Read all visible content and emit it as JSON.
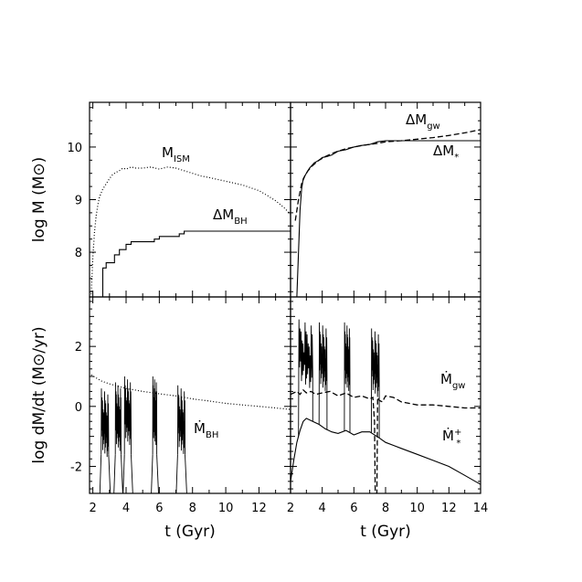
{
  "chart_data": [
    {
      "type": "line",
      "panel": "top-left",
      "ylabel": "log M (M⊙)",
      "xlim": [
        1.8,
        13.9
      ],
      "ylim": [
        7.15,
        10.85
      ],
      "yticks": [
        8,
        9,
        10
      ],
      "xticks": [
        2,
        4,
        6,
        8,
        10,
        12
      ],
      "series": [
        {
          "name": "MISM",
          "label_main": "M",
          "label_sub": "ISM",
          "style": "dotted",
          "x": [
            1.9,
            2.0,
            2.1,
            2.2,
            2.3,
            2.4,
            2.6,
            2.8,
            3.0,
            3.2,
            3.4,
            3.6,
            3.8,
            4.0,
            4.3,
            4.6,
            5.0,
            5.5,
            6.0,
            6.5,
            7.0,
            7.5,
            8.0,
            8.5,
            9.0,
            10.0,
            11.0,
            12.0,
            12.5,
            13.0,
            13.5,
            13.9
          ],
          "y": [
            7.2,
            7.9,
            8.4,
            8.7,
            8.9,
            9.05,
            9.2,
            9.3,
            9.4,
            9.48,
            9.52,
            9.55,
            9.6,
            9.58,
            9.62,
            9.6,
            9.6,
            9.62,
            9.58,
            9.62,
            9.6,
            9.55,
            9.5,
            9.45,
            9.42,
            9.35,
            9.28,
            9.17,
            9.08,
            8.98,
            8.85,
            8.72
          ]
        },
        {
          "name": "ΔMBH",
          "label_main": "ΔM",
          "label_sub": "BH",
          "style": "solid",
          "x": [
            2.6,
            2.6,
            2.8,
            2.8,
            3.3,
            3.3,
            3.6,
            3.6,
            4.0,
            4.0,
            4.3,
            4.3,
            5.7,
            5.7,
            6.0,
            6.0,
            7.2,
            7.2,
            7.5,
            7.5,
            13.9
          ],
          "y": [
            7.15,
            7.7,
            7.7,
            7.8,
            7.8,
            7.95,
            7.95,
            8.05,
            8.05,
            8.15,
            8.15,
            8.2,
            8.2,
            8.25,
            8.25,
            8.3,
            8.3,
            8.35,
            8.35,
            8.4,
            8.4
          ]
        }
      ]
    },
    {
      "type": "line",
      "panel": "top-right",
      "xlim": [
        2,
        14
      ],
      "ylim": [
        7.15,
        10.85
      ],
      "xticks": [
        2,
        4,
        6,
        8,
        10,
        12,
        14
      ],
      "series": [
        {
          "name": "ΔMgw",
          "label_main": "ΔM",
          "label_sub": "gw",
          "style": "dashed",
          "x": [
            2.3,
            2.5,
            2.7,
            2.9,
            3.1,
            3.4,
            3.8,
            4.2,
            4.8,
            5.5,
            6.5,
            7.5,
            8.0,
            9.0,
            10.0,
            11.0,
            12.0,
            13.0,
            14.0
          ],
          "y": [
            8.6,
            9.0,
            9.3,
            9.45,
            9.55,
            9.65,
            9.75,
            9.82,
            9.9,
            9.97,
            10.03,
            10.07,
            10.1,
            10.12,
            10.15,
            10.18,
            10.22,
            10.27,
            10.33
          ]
        },
        {
          "name": "ΔM*",
          "label_main": "ΔM",
          "label_sub": "*",
          "style": "solid",
          "x": [
            2.4,
            2.5,
            2.6,
            2.7,
            2.8,
            2.9,
            3.0,
            3.2,
            3.5,
            3.8,
            4.0,
            4.3,
            4.6,
            5.0,
            5.5,
            6.0,
            6.5,
            7.0,
            7.5,
            8.0,
            9.0,
            14.0
          ],
          "y": [
            7.15,
            8.0,
            8.8,
            9.2,
            9.4,
            9.45,
            9.5,
            9.6,
            9.7,
            9.75,
            9.8,
            9.82,
            9.85,
            9.92,
            9.95,
            10.0,
            10.03,
            10.05,
            10.1,
            10.12,
            10.12,
            10.12
          ]
        }
      ]
    },
    {
      "type": "line",
      "panel": "bottom-left",
      "xlabel": "t (Gyr)",
      "ylabel": "log dM/dt (M⊙/yr)",
      "xlim": [
        1.8,
        13.9
      ],
      "ylim": [
        -2.9,
        3.65
      ],
      "yticks": [
        -2,
        0,
        2
      ],
      "xticks": [
        2,
        4,
        6,
        8,
        10,
        12
      ],
      "series": [
        {
          "name": "dotted-rate",
          "style": "dotted",
          "x": [
            1.9,
            2.5,
            3.0,
            4.0,
            5.0,
            6.0,
            7.0,
            8.0,
            9.0,
            10.0,
            11.0,
            12.0,
            13.0,
            13.9
          ],
          "y": [
            1.05,
            0.85,
            0.75,
            0.6,
            0.5,
            0.42,
            0.35,
            0.25,
            0.18,
            0.1,
            0.05,
            0.0,
            -0.05,
            -0.1
          ]
        },
        {
          "name": "ṀBH",
          "label_main": "Ṁ",
          "label_sub": "BH",
          "style": "solid",
          "bursts": [
            {
              "start": 2.5,
              "end": 2.95,
              "peak": 0.6,
              "base": -1.6
            },
            {
              "start": 3.35,
              "end": 3.7,
              "peak": 0.8,
              "base": -1.6
            },
            {
              "start": 3.9,
              "end": 4.3,
              "peak": 1.0,
              "base": -1.6
            },
            {
              "start": 5.6,
              "end": 5.85,
              "peak": 1.0,
              "base": -1.6
            },
            {
              "start": 7.1,
              "end": 7.55,
              "peak": 0.7,
              "base": -1.6
            }
          ]
        }
      ]
    },
    {
      "type": "line",
      "panel": "bottom-right",
      "xlabel": "t (Gyr)",
      "xlim": [
        2,
        14
      ],
      "ylim": [
        -2.9,
        3.65
      ],
      "xticks": [
        2,
        4,
        6,
        8,
        10,
        12,
        14
      ],
      "series": [
        {
          "name": "Ṁgw",
          "label_main": "Ṁ",
          "label_sub": "gw",
          "style": "dashed",
          "x": [
            2.0,
            2.2,
            2.4,
            2.6,
            2.8,
            3.0,
            3.3,
            3.6,
            4.0,
            4.5,
            5.0,
            5.5,
            6.0,
            6.5,
            7.0,
            7.2,
            7.3,
            7.35,
            7.45,
            7.5,
            7.6,
            7.8,
            8.0,
            8.5,
            9.0,
            9.5,
            10.0,
            11.0,
            12.0,
            13.0,
            14.0
          ],
          "y": [
            0.4,
            0.45,
            0.5,
            0.4,
            0.55,
            0.45,
            0.5,
            0.4,
            0.45,
            0.5,
            0.35,
            0.45,
            0.3,
            0.35,
            0.25,
            0.3,
            -0.5,
            -2.9,
            -2.9,
            0.3,
            0.2,
            0.15,
            0.35,
            0.3,
            0.15,
            0.1,
            0.05,
            0.05,
            0.0,
            -0.05,
            -0.05
          ]
        },
        {
          "name": "Ṁ*+",
          "label_main": "Ṁ",
          "label_sub": "*",
          "label_sup": "+",
          "style": "solid",
          "x": [
            2.0,
            2.2,
            2.4,
            2.6,
            2.8,
            3.0,
            3.4,
            3.8,
            4.2,
            4.6,
            5.0,
            5.5,
            6.0,
            6.5,
            7.0,
            7.6,
            8.0,
            8.5,
            9.0,
            10.0,
            11.0,
            12.0,
            13.0,
            14.0
          ],
          "y": [
            -2.5,
            -1.8,
            -1.2,
            -0.8,
            -0.5,
            -0.4,
            -0.5,
            -0.6,
            -0.75,
            -0.85,
            -0.9,
            -0.8,
            -0.95,
            -0.85,
            -0.85,
            -1.05,
            -1.2,
            -1.3,
            -1.4,
            -1.6,
            -1.8,
            -2.0,
            -2.3,
            -2.6
          ],
          "bursts": [
            {
              "start": 2.5,
              "end": 3.4,
              "peak": 2.9
            },
            {
              "start": 3.8,
              "end": 4.3,
              "peak": 2.8
            },
            {
              "start": 5.4,
              "end": 5.75,
              "peak": 2.8
            },
            {
              "start": 7.1,
              "end": 7.6,
              "peak": 2.6
            }
          ]
        }
      ]
    }
  ]
}
